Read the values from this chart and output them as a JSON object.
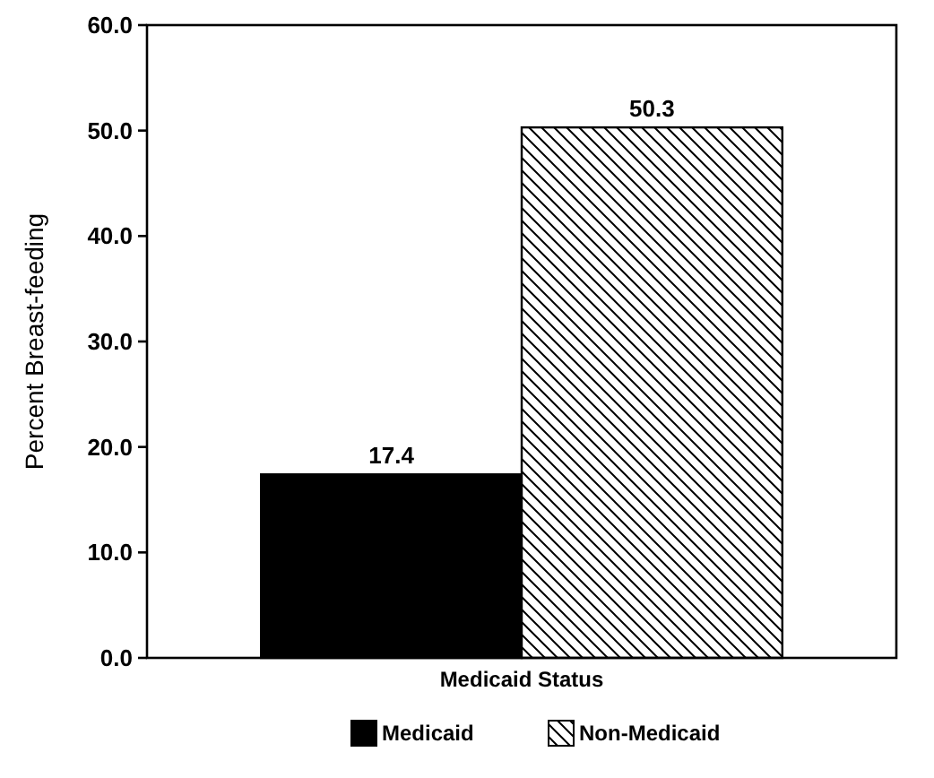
{
  "chart_data": {
    "type": "bar",
    "xlabel": "Medicaid Status",
    "ylabel": "Percent Breast-feeding",
    "categories": [
      null
    ],
    "series": [
      {
        "name": "Medicaid",
        "color": "#000000",
        "values": [
          17.4
        ]
      },
      {
        "name": "Non-Medicaid",
        "color": "#000000",
        "values": [
          50.3
        ]
      }
    ],
    "ylim": [
      0,
      60
    ],
    "yticks": [
      {
        "value": 0,
        "label": "0.0"
      },
      {
        "value": 10,
        "label": "10.0"
      },
      {
        "value": 20,
        "label": "20.0"
      },
      {
        "value": 30,
        "label": "30.0"
      },
      {
        "value": 40,
        "label": "40.0"
      },
      {
        "value": 50,
        "label": "50.0"
      },
      {
        "value": 60,
        "label": "60.0"
      }
    ],
    "data_labels": true,
    "legend": "bottom",
    "grid": false
  }
}
